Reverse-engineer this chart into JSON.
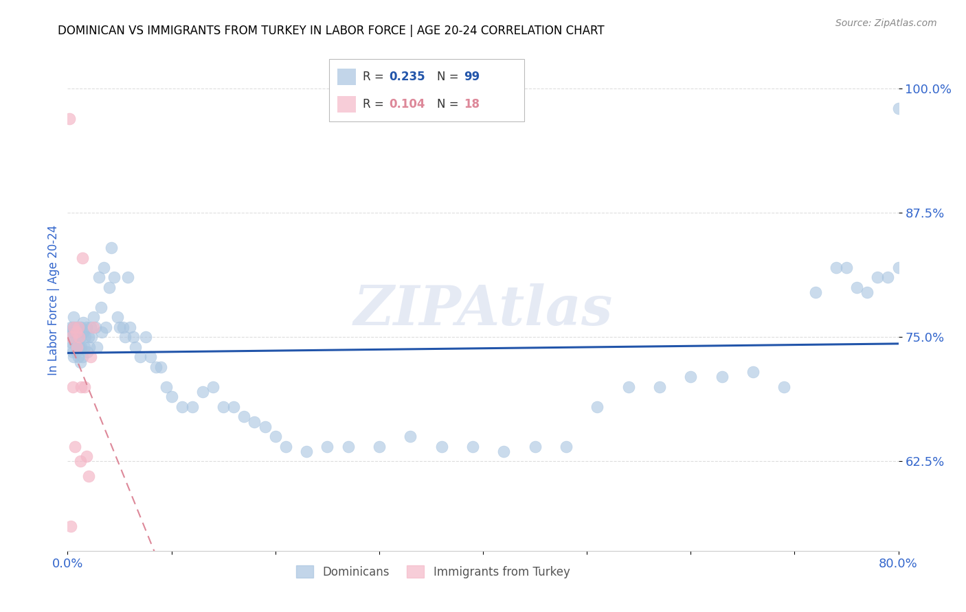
{
  "title": "DOMINICAN VS IMMIGRANTS FROM TURKEY IN LABOR FORCE | AGE 20-24 CORRELATION CHART",
  "source_text": "Source: ZipAtlas.com",
  "ylabel": "In Labor Force | Age 20-24",
  "watermark": "ZIPAtlas",
  "blue_color": "#A8C4E0",
  "pink_color": "#F4B8C8",
  "trend_blue_color": "#2255AA",
  "trend_pink_color": "#DD8899",
  "xlim": [
    0.0,
    0.8
  ],
  "ylim": [
    0.535,
    1.04
  ],
  "yticks": [
    0.625,
    0.75,
    0.875,
    1.0
  ],
  "ytick_labels": [
    "62.5%",
    "75.0%",
    "87.5%",
    "100.0%"
  ],
  "blue_x": [
    0.002,
    0.003,
    0.003,
    0.004,
    0.004,
    0.005,
    0.005,
    0.005,
    0.006,
    0.006,
    0.007,
    0.007,
    0.008,
    0.008,
    0.009,
    0.009,
    0.01,
    0.01,
    0.01,
    0.011,
    0.011,
    0.012,
    0.012,
    0.013,
    0.013,
    0.014,
    0.015,
    0.015,
    0.016,
    0.017,
    0.018,
    0.019,
    0.02,
    0.021,
    0.022,
    0.023,
    0.025,
    0.027,
    0.028,
    0.03,
    0.032,
    0.033,
    0.035,
    0.037,
    0.04,
    0.042,
    0.045,
    0.048,
    0.05,
    0.053,
    0.055,
    0.058,
    0.06,
    0.063,
    0.065,
    0.07,
    0.075,
    0.08,
    0.085,
    0.09,
    0.095,
    0.1,
    0.11,
    0.12,
    0.13,
    0.14,
    0.15,
    0.16,
    0.17,
    0.18,
    0.19,
    0.2,
    0.21,
    0.23,
    0.25,
    0.27,
    0.3,
    0.33,
    0.36,
    0.39,
    0.42,
    0.45,
    0.48,
    0.51,
    0.54,
    0.57,
    0.6,
    0.63,
    0.66,
    0.69,
    0.72,
    0.74,
    0.76,
    0.77,
    0.78,
    0.79,
    0.8,
    0.8,
    0.75
  ],
  "blue_y": [
    0.755,
    0.76,
    0.74,
    0.75,
    0.745,
    0.76,
    0.735,
    0.755,
    0.77,
    0.73,
    0.745,
    0.76,
    0.735,
    0.755,
    0.74,
    0.76,
    0.745,
    0.73,
    0.755,
    0.74,
    0.76,
    0.725,
    0.75,
    0.74,
    0.76,
    0.73,
    0.755,
    0.765,
    0.74,
    0.75,
    0.76,
    0.735,
    0.75,
    0.74,
    0.76,
    0.75,
    0.77,
    0.76,
    0.74,
    0.81,
    0.78,
    0.755,
    0.82,
    0.76,
    0.8,
    0.84,
    0.81,
    0.77,
    0.76,
    0.76,
    0.75,
    0.81,
    0.76,
    0.75,
    0.74,
    0.73,
    0.75,
    0.73,
    0.72,
    0.72,
    0.7,
    0.69,
    0.68,
    0.68,
    0.695,
    0.7,
    0.68,
    0.68,
    0.67,
    0.665,
    0.66,
    0.65,
    0.64,
    0.635,
    0.64,
    0.64,
    0.64,
    0.65,
    0.64,
    0.64,
    0.635,
    0.64,
    0.64,
    0.68,
    0.7,
    0.7,
    0.71,
    0.71,
    0.715,
    0.7,
    0.795,
    0.82,
    0.8,
    0.795,
    0.81,
    0.81,
    0.82,
    0.98,
    0.82
  ],
  "pink_x": [
    0.002,
    0.003,
    0.004,
    0.005,
    0.006,
    0.007,
    0.008,
    0.009,
    0.01,
    0.011,
    0.012,
    0.013,
    0.014,
    0.016,
    0.018,
    0.02,
    0.022,
    0.025
  ],
  "pink_y": [
    0.97,
    0.56,
    0.75,
    0.7,
    0.76,
    0.64,
    0.755,
    0.74,
    0.76,
    0.75,
    0.625,
    0.7,
    0.83,
    0.7,
    0.63,
    0.61,
    0.73,
    0.76
  ],
  "grid_color": "#DDDDDD",
  "axis_label_color": "#3366CC",
  "tick_label_color": "#3366CC",
  "title_color": "#000000",
  "background_color": "#FFFFFF"
}
